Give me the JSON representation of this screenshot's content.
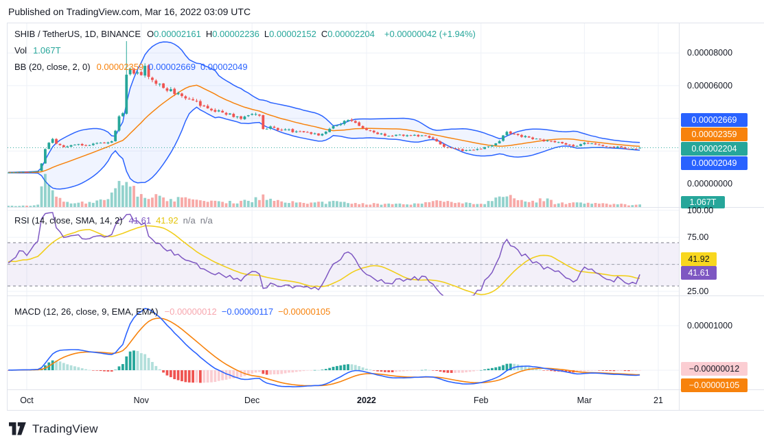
{
  "header": {
    "published": "Published on TradingView.com, Mar 16, 2022 03:09 UTC"
  },
  "main_legend": {
    "title": "SHIB / TetherUS, 1D, BINANCE",
    "ohlc": [
      {
        "k": "O",
        "v": "0.00002161"
      },
      {
        "k": "H",
        "v": "0.00002236"
      },
      {
        "k": "L",
        "v": "0.00002152"
      },
      {
        "k": "C",
        "v": "0.00002204"
      }
    ],
    "change": "+0.00000042 (+1.94%)",
    "vol_label": "Vol",
    "vol_value": "1.067T",
    "bb_label": "BB (20, close, 2, 0)",
    "bb_values": [
      {
        "text": "0.00002359",
        "color": "#f7820c"
      },
      {
        "text": "0.00002669",
        "color": "#2962ff"
      },
      {
        "text": "0.00002049",
        "color": "#2962ff"
      }
    ]
  },
  "rsi_legend": {
    "label": "RSI (14, close, SMA, 14, 2)",
    "values": [
      {
        "text": "41.61",
        "color": "#7e57c2"
      },
      {
        "text": "41.92",
        "color": "#e3c40c"
      },
      {
        "text": "n/a",
        "color": "#787b86"
      },
      {
        "text": "n/a",
        "color": "#787b86"
      }
    ]
  },
  "macd_legend": {
    "label": "MACD (12, 26, close, 9, EMA, EMA)",
    "values": [
      {
        "text": "−0.00000012",
        "color": "#f7a6ae"
      },
      {
        "text": "−0.00000117",
        "color": "#2962ff"
      },
      {
        "text": "−0.00000105",
        "color": "#f7820c"
      }
    ]
  },
  "price_axis": {
    "plain_labels": [
      {
        "text": "0.00008000",
        "price": 8e-05
      },
      {
        "text": "0.00006000",
        "price": 6e-05
      },
      {
        "text": "0.00000000",
        "price": 0
      }
    ],
    "badges": [
      {
        "text": "0.00002669",
        "bg": "#2962ff",
        "fg": "#ffffff"
      },
      {
        "text": "0.00002359",
        "bg": "#f7820c",
        "fg": "#ffffff"
      },
      {
        "text": "0.00002204",
        "bg": "#26a69a",
        "fg": "#ffffff"
      },
      {
        "text": "0.00002049",
        "bg": "#2962ff",
        "fg": "#ffffff"
      }
    ],
    "vol_badge": {
      "text": "1.067T",
      "bg": "#26a69a",
      "fg": "#ffffff"
    }
  },
  "rsi_axis": {
    "plain_labels": [
      {
        "text": "100.00",
        "value": 100
      },
      {
        "text": "75.00",
        "value": 75
      },
      {
        "text": "25.00",
        "value": 25
      }
    ],
    "badges": [
      {
        "text": "41.92",
        "bg": "#f8d71f",
        "fg": "#131722"
      },
      {
        "text": "41.61",
        "bg": "#7e57c2",
        "fg": "#ffffff"
      }
    ]
  },
  "macd_axis": {
    "plain_labels": [
      {
        "text": "0.00001000",
        "value": 1e-05
      }
    ],
    "badges": [
      {
        "text": "−0.00000012",
        "bg": "#fbcdd2",
        "fg": "#131722"
      },
      {
        "text": "−0.00000105",
        "bg": "#f7820c",
        "fg": "#ffffff"
      }
    ]
  },
  "footer": {
    "brand": "TradingView"
  },
  "colors": {
    "up": "#26a69a",
    "down": "#ef5350",
    "vol_up": "rgba(38,166,154,0.5)",
    "vol_down": "rgba(239,83,80,0.5)",
    "bb_line": "#2962ff",
    "bb_fill": "rgba(41,98,255,0.07)",
    "bb_basis": "#f7820c",
    "price_line": "#26a69a",
    "rsi": "#7e57c2",
    "rsi_sma": "#f1ce1b",
    "rsi_band_fill": "rgba(126,87,194,0.09)",
    "rsi_band_line": "#787b86",
    "rsi_mid_line": "#9b9fa8",
    "macd": "#2962ff",
    "macd_signal": "#f7820c",
    "hist_up": "#26a69a",
    "hist_up_weak": "#b2dfdb",
    "hist_down": "#ef5350",
    "hist_down_weak": "#fbcdd2",
    "grid": "#eef1f7",
    "legend_teal": "#26a69a",
    "text": "#131722"
  },
  "chart_data": {
    "type": "candlestick",
    "symbol": "SHIB / TetherUS",
    "interval": "1D",
    "exchange": "BINANCE",
    "title": "SHIB / TetherUS, 1D, BINANCE with BB(20,2), RSI(14) and MACD(12,26,9)",
    "last_candle": {
      "o": 2.161e-05,
      "h": 2.236e-05,
      "l": 2.152e-05,
      "c": 2.204e-05
    },
    "change_abs": "+0.00000042",
    "change_pct": "+1.94%",
    "volume_display": "1.067T",
    "ath": {
      "t": 27,
      "high": 8.72e-05
    },
    "warmup_start": -40,
    "display_start": -5,
    "price_unit": 1e-07,
    "x_axis": {
      "unit": "days_since_2021-10-01",
      "last_day": 166,
      "ticks": [
        {
          "label": "Oct",
          "t": 0
        },
        {
          "label": "Nov",
          "t": 31
        },
        {
          "label": "Dec",
          "t": 61
        },
        {
          "label": "2022",
          "t": 92,
          "bold": true
        },
        {
          "label": "Feb",
          "t": 123
        },
        {
          "label": "Mar",
          "t": 151
        },
        {
          "label": "21",
          "t": 171
        }
      ]
    },
    "price_range": {
      "min": 0,
      "max": 9.25e-05,
      "gridlines": [
        2e-05,
        4e-05,
        6e-05,
        8e-05
      ]
    },
    "price_keypoints": [
      [
        -40,
        68
      ],
      [
        -10,
        69
      ],
      [
        -5,
        70
      ],
      [
        0,
        72
      ],
      [
        3,
        78
      ],
      [
        4,
        125
      ],
      [
        5,
        210
      ],
      [
        6,
        250
      ],
      [
        7,
        268
      ],
      [
        8,
        240
      ],
      [
        10,
        225
      ],
      [
        13,
        240
      ],
      [
        16,
        230
      ],
      [
        19,
        250
      ],
      [
        22,
        252
      ],
      [
        23,
        262
      ],
      [
        24,
        330
      ],
      [
        25,
        405
      ],
      [
        26,
        440
      ],
      [
        27,
        660
      ],
      [
        28,
        720
      ],
      [
        29,
        680
      ],
      [
        31,
        655
      ],
      [
        32,
        730
      ],
      [
        33,
        645
      ],
      [
        35,
        620
      ],
      [
        38,
        580
      ],
      [
        41,
        545
      ],
      [
        45,
        510
      ],
      [
        50,
        455
      ],
      [
        55,
        420
      ],
      [
        58,
        400
      ],
      [
        61,
        430
      ],
      [
        63,
        415
      ],
      [
        64,
        340
      ],
      [
        66,
        345
      ],
      [
        69,
        330
      ],
      [
        73,
        320
      ],
      [
        77,
        305
      ],
      [
        80,
        300
      ],
      [
        83,
        345
      ],
      [
        86,
        380
      ],
      [
        88,
        385
      ],
      [
        91,
        340
      ],
      [
        95,
        310
      ],
      [
        99,
        290
      ],
      [
        103,
        300
      ],
      [
        107,
        295
      ],
      [
        110,
        275
      ],
      [
        112,
        235
      ],
      [
        115,
        215
      ],
      [
        118,
        205
      ],
      [
        122,
        212
      ],
      [
        126,
        230
      ],
      [
        128,
        265
      ],
      [
        130,
        320
      ],
      [
        131,
        310
      ],
      [
        133,
        295
      ],
      [
        136,
        280
      ],
      [
        139,
        265
      ],
      [
        143,
        255
      ],
      [
        146,
        240
      ],
      [
        148,
        228
      ],
      [
        151,
        250
      ],
      [
        154,
        240
      ],
      [
        158,
        228
      ],
      [
        161,
        220
      ],
      [
        163,
        214
      ],
      [
        165,
        216
      ],
      [
        166,
        220.4
      ]
    ],
    "volume_keypoints": [
      [
        -40,
        0.03
      ],
      [
        -6,
        0.03
      ],
      [
        3,
        0.06
      ],
      [
        4,
        0.55
      ],
      [
        5,
        0.8
      ],
      [
        6,
        0.55
      ],
      [
        8,
        0.38
      ],
      [
        10,
        0.2
      ],
      [
        14,
        0.13
      ],
      [
        18,
        0.16
      ],
      [
        22,
        0.22
      ],
      [
        24,
        0.75
      ],
      [
        26,
        0.6
      ],
      [
        27,
        1.0
      ],
      [
        28,
        0.85
      ],
      [
        30,
        0.5
      ],
      [
        33,
        0.38
      ],
      [
        36,
        0.3
      ],
      [
        40,
        0.26
      ],
      [
        45,
        0.23
      ],
      [
        50,
        0.18
      ],
      [
        55,
        0.15
      ],
      [
        60,
        0.2
      ],
      [
        64,
        0.33
      ],
      [
        68,
        0.18
      ],
      [
        73,
        0.13
      ],
      [
        78,
        0.12
      ],
      [
        83,
        0.17
      ],
      [
        88,
        0.14
      ],
      [
        93,
        0.11
      ],
      [
        98,
        0.1
      ],
      [
        103,
        0.11
      ],
      [
        108,
        0.12
      ],
      [
        112,
        0.25
      ],
      [
        116,
        0.14
      ],
      [
        120,
        0.1
      ],
      [
        124,
        0.12
      ],
      [
        128,
        0.3
      ],
      [
        130,
        0.36
      ],
      [
        132,
        0.28
      ],
      [
        135,
        0.18
      ],
      [
        138,
        0.16
      ],
      [
        140,
        0.26
      ],
      [
        143,
        0.14
      ],
      [
        147,
        0.11
      ],
      [
        150,
        0.12
      ],
      [
        154,
        0.13
      ],
      [
        158,
        0.1
      ],
      [
        162,
        0.08
      ],
      [
        166,
        0.07
      ]
    ],
    "indicators": {
      "bollinger": {
        "params": "BB (20, close, 2, 0)",
        "basis": 2.359e-05,
        "upper": 2.669e-05,
        "lower": 2.049e-05
      },
      "rsi": {
        "params": "RSI (14, close, SMA, 14, 2)",
        "value": 41.61,
        "sma": 41.92,
        "band": [
          30,
          70
        ],
        "mid": 50,
        "scale": [
          25,
          50,
          75,
          100
        ]
      },
      "macd": {
        "params": "MACD (12, 26, close, 9, EMA, EMA)",
        "hist": -1.2e-07,
        "macd": -1.17e-06,
        "signal": -1.05e-06,
        "scale_gridlines": [
          0,
          1e-05
        ]
      }
    }
  }
}
